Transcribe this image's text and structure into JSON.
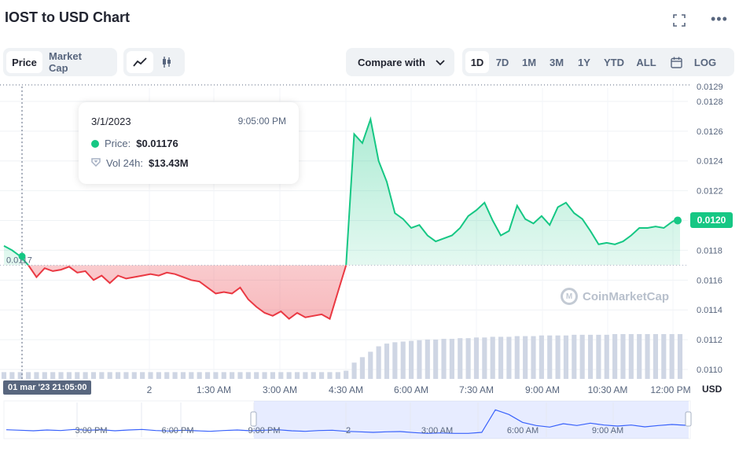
{
  "header": {
    "title": "IOST to USD Chart",
    "fullscreen_icon": "expand-icon",
    "more_icon": "more-horizontal-icon"
  },
  "toolbar": {
    "metric_tabs": [
      {
        "label": "Price",
        "active": true
      },
      {
        "label": "Market Cap",
        "active": false
      }
    ],
    "chart_types": [
      {
        "icon": "line-chart-icon",
        "active": true
      },
      {
        "icon": "candlestick-icon",
        "active": false
      }
    ],
    "compare_label": "Compare with",
    "ranges": [
      {
        "label": "1D",
        "active": true
      },
      {
        "label": "7D",
        "active": false
      },
      {
        "label": "1M",
        "active": false
      },
      {
        "label": "3M",
        "active": false
      },
      {
        "label": "1Y",
        "active": false
      },
      {
        "label": "YTD",
        "active": false
      },
      {
        "label": "ALL",
        "active": false
      }
    ],
    "calendar_icon": "calendar-icon",
    "log_label": "LOG"
  },
  "tooltip": {
    "date": "3/1/2023",
    "time": "9:05:00 PM",
    "price_label": "Price:",
    "price_value": "$0.01176",
    "vol_label": "Vol 24h:",
    "vol_value": "$13.43M"
  },
  "watermark": "CoinMarketCap",
  "colors": {
    "up": "#16c784",
    "down": "#ea3943",
    "volume": "#cfd6e4",
    "nav_line": "#3861fb"
  },
  "chart_data": {
    "type": "line",
    "title": "IOST to USD Chart",
    "xlabel": "",
    "ylabel": "USD",
    "currency_label": "USD",
    "ylim": [
      0.011,
      0.0129
    ],
    "yticks": [
      "0.0110",
      "0.0112",
      "0.0114",
      "0.0116",
      "0.0118",
      "0.0120",
      "0.0122",
      "0.0124",
      "0.0126",
      "0.0128",
      "0.0129"
    ],
    "xticks": [
      "2",
      "1:30 AM",
      "3:00 AM",
      "4:30 AM",
      "6:00 AM",
      "7:30 AM",
      "9:00 AM",
      "10:30 AM",
      "12:00 PM"
    ],
    "x_cursor_label": "01 mar '23  21:05:00",
    "open_reference_price": 0.0117,
    "open_reference_label": "0.0117",
    "current_price": 0.012,
    "current_price_label": "0.0120",
    "grid": true,
    "price_series": [
      0.01183,
      0.0118,
      0.01176,
      0.0117,
      0.01162,
      0.01168,
      0.01166,
      0.01167,
      0.01169,
      0.01165,
      0.01166,
      0.0116,
      0.01163,
      0.01158,
      0.01163,
      0.01161,
      0.01162,
      0.01163,
      0.01164,
      0.01163,
      0.01165,
      0.01164,
      0.01162,
      0.0116,
      0.01159,
      0.01155,
      0.01151,
      0.01152,
      0.01151,
      0.01155,
      0.01147,
      0.01142,
      0.01138,
      0.01136,
      0.01139,
      0.01134,
      0.01138,
      0.01135,
      0.01136,
      0.01137,
      0.01134,
      0.01152,
      0.0117,
      0.01258,
      0.01252,
      0.01268,
      0.0124,
      0.01226,
      0.01205,
      0.01201,
      0.01195,
      0.01197,
      0.0119,
      0.01186,
      0.01188,
      0.0119,
      0.01195,
      0.01203,
      0.01207,
      0.01212,
      0.012,
      0.0119,
      0.01193,
      0.0121,
      0.01201,
      0.01198,
      0.01203,
      0.01197,
      0.01209,
      0.01212,
      0.01205,
      0.01201,
      0.01193,
      0.01184,
      0.01185,
      0.01184,
      0.01186,
      0.0119,
      0.01195,
      0.01195,
      0.01196,
      0.01195,
      0.01199,
      0.01202
    ],
    "volume_series": [
      0.5,
      0.5,
      0.5,
      0.5,
      0.5,
      0.5,
      0.5,
      0.5,
      0.5,
      0.5,
      0.5,
      0.5,
      0.5,
      0.5,
      0.5,
      0.5,
      0.5,
      0.5,
      0.5,
      0.5,
      0.5,
      0.5,
      0.5,
      0.5,
      0.5,
      0.5,
      0.5,
      0.5,
      0.5,
      0.5,
      0.5,
      0.5,
      0.5,
      0.5,
      0.5,
      0.5,
      0.5,
      0.5,
      0.5,
      0.5,
      0.5,
      0.5,
      0.6,
      1.2,
      1.6,
      2.0,
      2.4,
      2.6,
      2.7,
      2.75,
      2.8,
      2.85,
      2.9,
      2.9,
      2.95,
      2.95,
      3.0,
      3.0,
      3.05,
      3.05,
      3.1,
      3.1,
      3.1,
      3.15,
      3.15,
      3.15,
      3.2,
      3.2,
      3.2,
      3.2,
      3.25,
      3.25,
      3.25,
      3.25,
      3.25,
      3.3,
      3.3,
      3.3,
      3.3,
      3.3,
      3.3,
      3.3,
      3.3,
      3.3
    ],
    "navigator": {
      "xticks": [
        "3:00 PM",
        "6:00 PM",
        "9:00 PM",
        "2",
        "3:00 AM",
        "6:00 AM",
        "9:00 AM"
      ]
    }
  }
}
